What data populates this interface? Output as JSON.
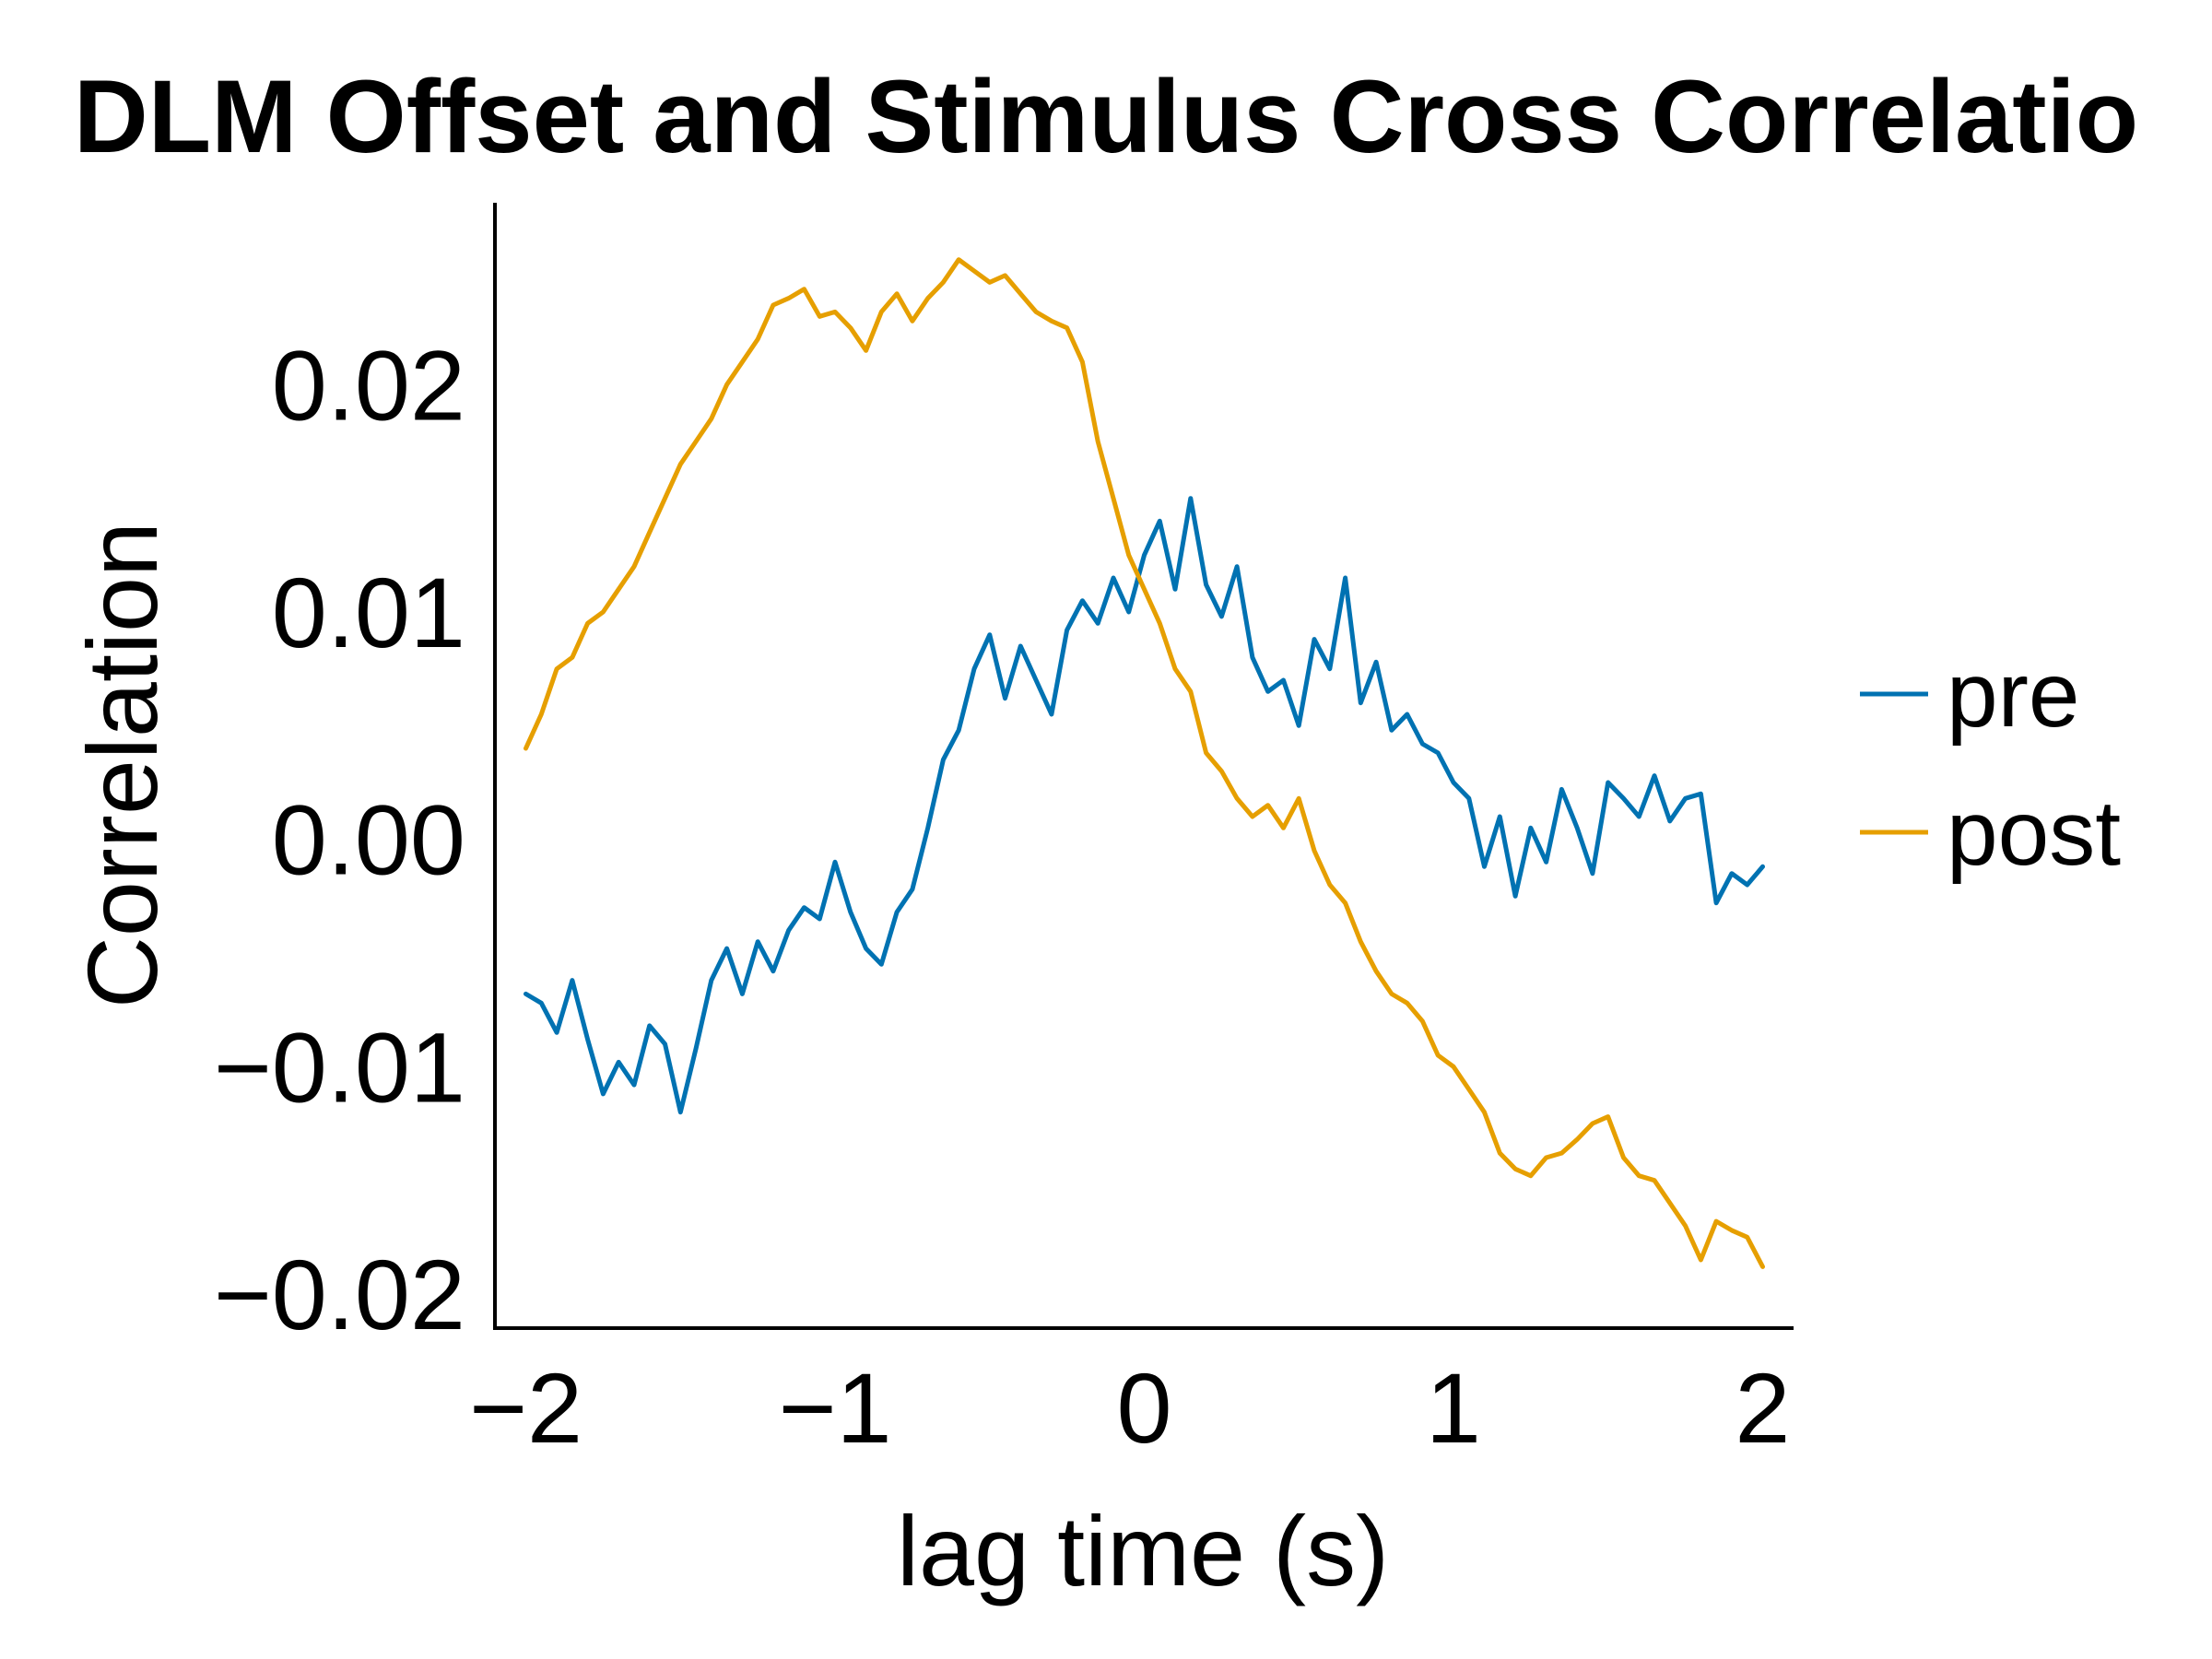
{
  "chart_data": {
    "type": "line",
    "title": "DLM Offset and Stimulus Cross Correlatio",
    "xlabel": "lag time (s)",
    "ylabel": "Correlation",
    "xlim": [
      -2.1,
      2.1
    ],
    "ylim": [
      -0.0215,
      0.028
    ],
    "xticks": [
      -2,
      -1,
      0,
      1,
      2
    ],
    "xtick_labels": [
      "−2",
      "−1",
      "0",
      "1",
      "2"
    ],
    "yticks": [
      0.02,
      0.01,
      0.0,
      -0.01,
      -0.02
    ],
    "ytick_labels": [
      "0.02",
      "0.01",
      "0.00",
      "−0.01",
      "−0.02"
    ],
    "grid": false,
    "legend_position": "right",
    "series": [
      {
        "name": "pre",
        "color": "#0072B2",
        "x": [
          -2.0,
          -1.95,
          -1.9,
          -1.85,
          -1.8,
          -1.75,
          -1.7,
          -1.65,
          -1.6,
          -1.55,
          -1.5,
          -1.45,
          -1.4,
          -1.35,
          -1.3,
          -1.25,
          -1.2,
          -1.15,
          -1.1,
          -1.05,
          -1.0,
          -0.95,
          -0.9,
          -0.85,
          -0.8,
          -0.75,
          -0.7,
          -0.65,
          -0.6,
          -0.55,
          -0.5,
          -0.45,
          -0.4,
          -0.35,
          -0.3,
          -0.25,
          -0.2,
          -0.15,
          -0.1,
          -0.05,
          0.0,
          0.05,
          0.1,
          0.15,
          0.2,
          0.25,
          0.3,
          0.35,
          0.4,
          0.45,
          0.5,
          0.55,
          0.6,
          0.65,
          0.7,
          0.75,
          0.8,
          0.85,
          0.9,
          0.95,
          1.0,
          1.05,
          1.1,
          1.15,
          1.2,
          1.25,
          1.3,
          1.35,
          1.4,
          1.45,
          1.5,
          1.55,
          1.6,
          1.65,
          1.7,
          1.75,
          1.8,
          1.85,
          1.9,
          1.95,
          2.0
        ],
        "y": [
          -0.0068,
          -0.0072,
          -0.0085,
          -0.0062,
          -0.0088,
          -0.0112,
          -0.0098,
          -0.0108,
          -0.0082,
          -0.009,
          -0.012,
          -0.0092,
          -0.0062,
          -0.0048,
          -0.0068,
          -0.0045,
          -0.0058,
          -0.004,
          -0.003,
          -0.0035,
          -0.001,
          -0.0032,
          -0.0048,
          -0.0055,
          -0.0032,
          -0.0022,
          0.0005,
          0.0035,
          0.0048,
          0.0075,
          0.009,
          0.0062,
          0.0085,
          0.007,
          0.0055,
          0.0092,
          0.0105,
          0.0095,
          0.0115,
          0.01,
          0.0125,
          0.014,
          0.011,
          0.015,
          0.0112,
          0.0098,
          0.012,
          0.008,
          0.0065,
          0.007,
          0.005,
          0.0088,
          0.0075,
          0.0115,
          0.006,
          0.0078,
          0.0048,
          0.0055,
          0.0042,
          0.0038,
          0.0025,
          0.0018,
          -0.0012,
          0.001,
          -0.0025,
          0.0005,
          -0.001,
          0.0022,
          0.0005,
          -0.0015,
          0.0025,
          0.0018,
          0.001,
          0.0028,
          0.0008,
          0.0018,
          0.002,
          -0.0028,
          -0.0015,
          -0.002,
          -0.0012
        ]
      },
      {
        "name": "post",
        "color": "#E69F00",
        "x": [
          -2.0,
          -1.95,
          -1.9,
          -1.85,
          -1.8,
          -1.75,
          -1.7,
          -1.65,
          -1.6,
          -1.55,
          -1.5,
          -1.45,
          -1.4,
          -1.35,
          -1.3,
          -1.25,
          -1.2,
          -1.15,
          -1.1,
          -1.05,
          -1.0,
          -0.95,
          -0.9,
          -0.85,
          -0.8,
          -0.75,
          -0.7,
          -0.65,
          -0.6,
          -0.55,
          -0.5,
          -0.45,
          -0.4,
          -0.35,
          -0.3,
          -0.25,
          -0.2,
          -0.15,
          -0.1,
          -0.05,
          0.0,
          0.05,
          0.1,
          0.15,
          0.2,
          0.25,
          0.3,
          0.35,
          0.4,
          0.45,
          0.5,
          0.55,
          0.6,
          0.65,
          0.7,
          0.75,
          0.8,
          0.85,
          0.9,
          0.95,
          1.0,
          1.05,
          1.1,
          1.15,
          1.2,
          1.25,
          1.3,
          1.35,
          1.4,
          1.45,
          1.5,
          1.55,
          1.6,
          1.65,
          1.7,
          1.75,
          1.8,
          1.85,
          1.9,
          1.95,
          2.0
        ],
        "y": [
          0.004,
          0.0055,
          0.0075,
          0.008,
          0.0095,
          0.01,
          0.011,
          0.012,
          0.0135,
          0.015,
          0.0165,
          0.0175,
          0.0185,
          0.02,
          0.021,
          0.022,
          0.0235,
          0.0238,
          0.0242,
          0.023,
          0.0232,
          0.0225,
          0.0215,
          0.0232,
          0.024,
          0.0228,
          0.0238,
          0.0245,
          0.0255,
          0.025,
          0.0245,
          0.0248,
          0.024,
          0.0232,
          0.0228,
          0.0225,
          0.021,
          0.0175,
          0.015,
          0.0125,
          0.011,
          0.0095,
          0.0075,
          0.0065,
          0.0038,
          0.003,
          0.0018,
          0.001,
          0.0015,
          0.0005,
          0.0018,
          -0.0005,
          -0.002,
          -0.0028,
          -0.0045,
          -0.0058,
          -0.0068,
          -0.0072,
          -0.008,
          -0.0095,
          -0.01,
          -0.011,
          -0.012,
          -0.0138,
          -0.0145,
          -0.0148,
          -0.014,
          -0.0138,
          -0.0132,
          -0.0125,
          -0.0122,
          -0.014,
          -0.0148,
          -0.015,
          -0.016,
          -0.017,
          -0.0185,
          -0.0168,
          -0.0172,
          -0.0175,
          -0.0188
        ]
      }
    ]
  }
}
